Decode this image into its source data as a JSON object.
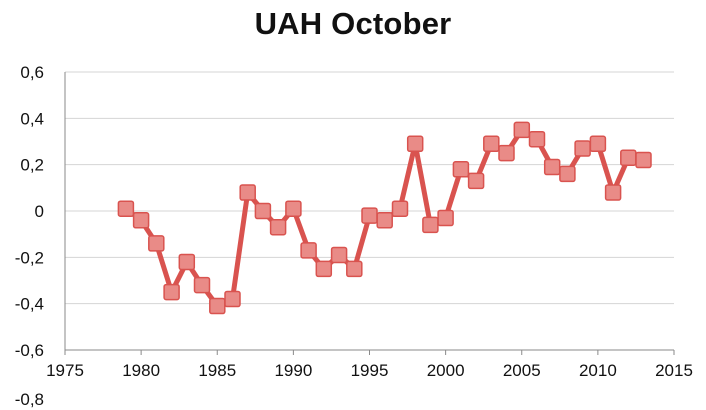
{
  "chart_data": {
    "type": "line",
    "title": "UAH October",
    "xlabel": "",
    "ylabel": "",
    "xlim": [
      1975,
      2015
    ],
    "ylim": [
      -0.6,
      0.6
    ],
    "grid": "horizontal",
    "legend": "none",
    "line_color": "#d9534f",
    "marker_color": "#e98b87",
    "x_tick_labels": [
      "1975",
      "1980",
      "1985",
      "1990",
      "1995",
      "2000",
      "2005",
      "2010",
      "2015"
    ],
    "y_tick_labels": [
      "0,6",
      "0,4",
      "0,2",
      "0",
      "-0,2",
      "-0,4",
      "-0,6",
      "-0,8"
    ],
    "series": [
      {
        "x": [
          1979,
          1980,
          1981,
          1982,
          1983,
          1984,
          1985,
          1986,
          1987,
          1988,
          1989,
          1990,
          1991,
          1992,
          1993,
          1994,
          1995,
          1996,
          1997,
          1998,
          1999,
          2000,
          2001,
          2002,
          2003,
          2004,
          2005,
          2006,
          2007,
          2008,
          2009,
          2010,
          2011,
          2012,
          2013
        ],
        "values": [
          0.01,
          -0.04,
          -0.14,
          -0.35,
          -0.22,
          -0.32,
          -0.41,
          -0.38,
          0.08,
          0.0,
          -0.07,
          0.01,
          -0.17,
          -0.25,
          -0.19,
          -0.25,
          -0.02,
          -0.04,
          0.01,
          0.29,
          -0.06,
          -0.03,
          0.18,
          0.13,
          0.29,
          0.25,
          0.35,
          0.31,
          0.19,
          0.16,
          0.27,
          0.29,
          0.08,
          0.23,
          0.22
        ]
      }
    ]
  }
}
